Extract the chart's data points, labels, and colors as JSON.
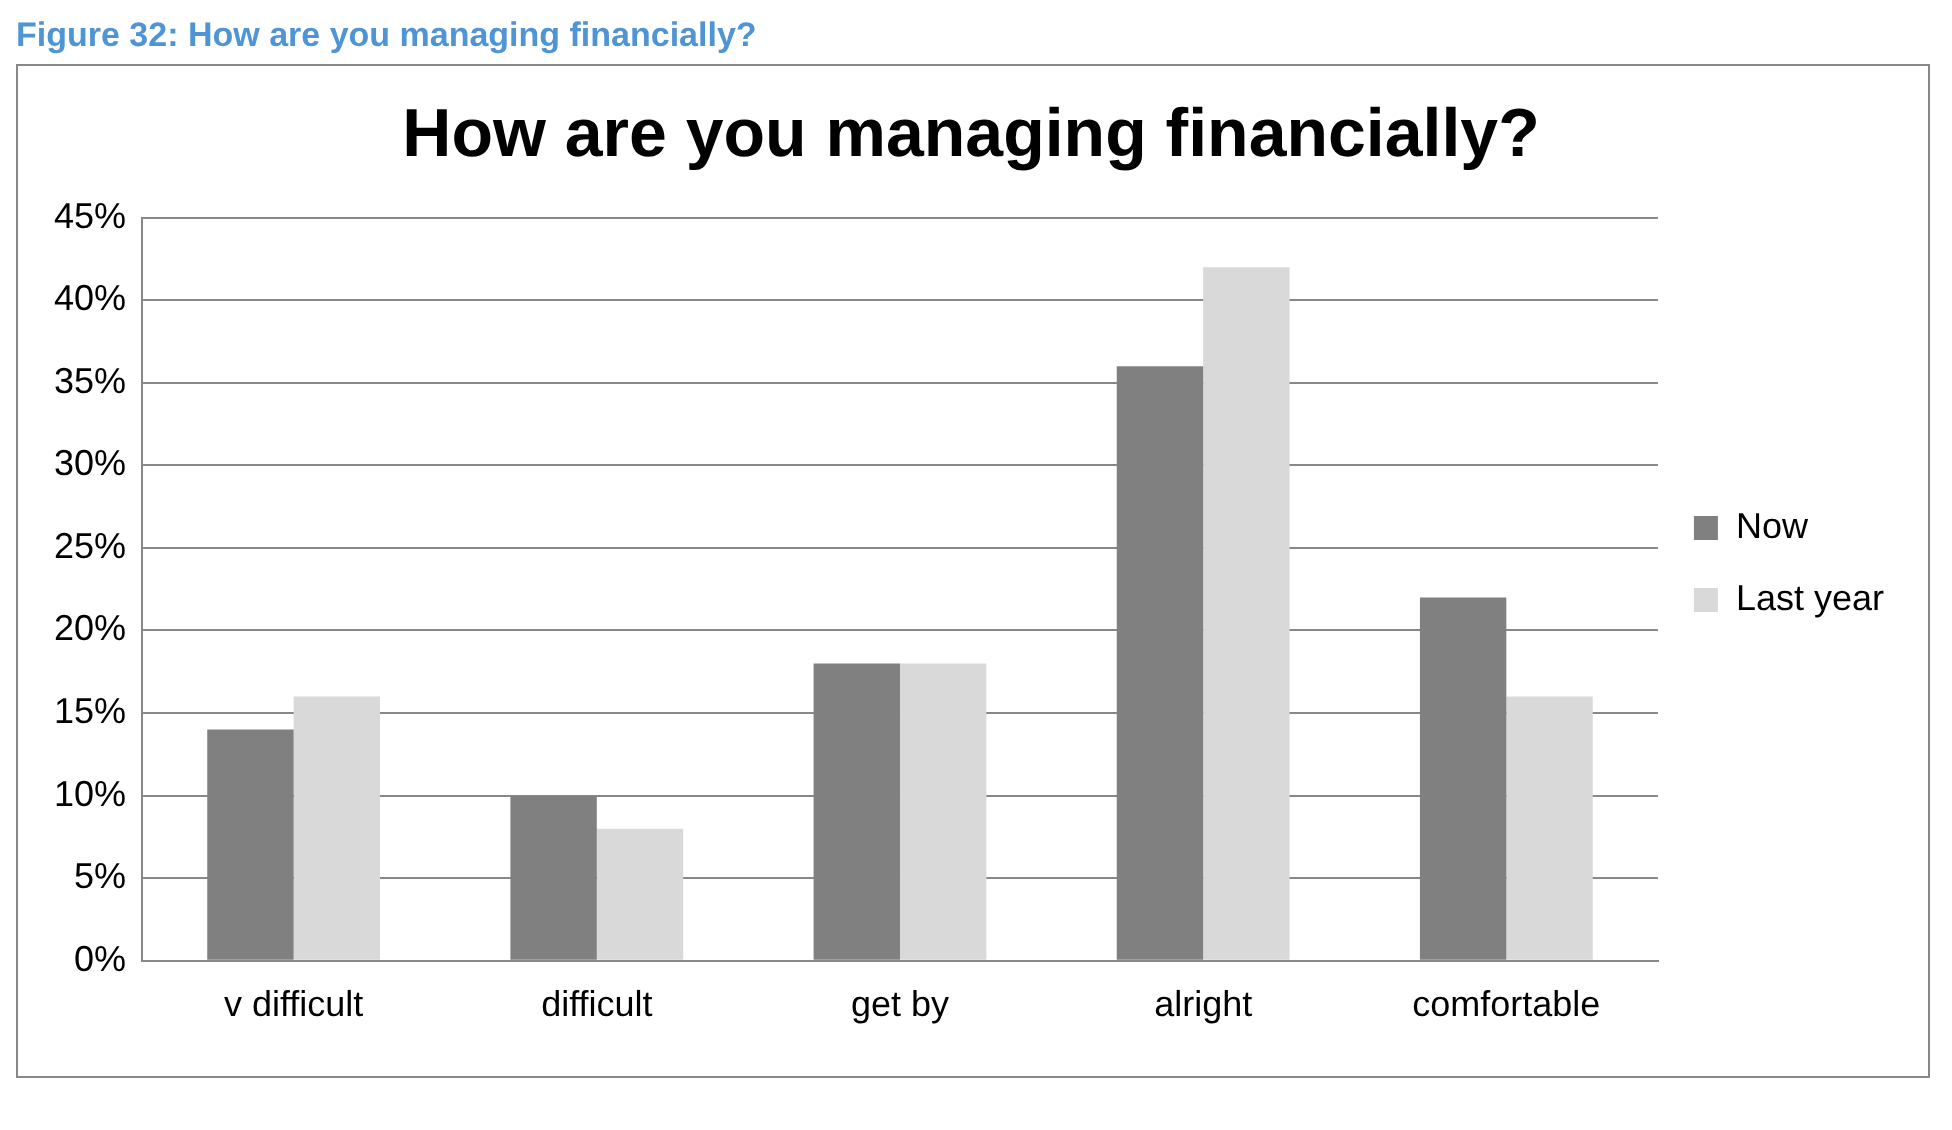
{
  "chart_data": {
    "type": "bar",
    "title": "How are you managing financially?",
    "annotations": [
      "Figure 32: How are you managing financially?"
    ],
    "categories": [
      "v difficult",
      "difficult",
      "get by",
      "alright",
      "comfortable"
    ],
    "series": [
      {
        "name": "Now",
        "color": "#808080",
        "values": [
          14,
          10,
          18,
          36,
          22
        ]
      },
      {
        "name": "Last year",
        "color": "#d9d9d9",
        "values": [
          16,
          8,
          18,
          42,
          16
        ]
      }
    ],
    "ylim": [
      0,
      45
    ],
    "yticks": [
      {
        "value": 0,
        "label": "0%"
      },
      {
        "value": 5,
        "label": "5%"
      },
      {
        "value": 10,
        "label": "10%"
      },
      {
        "value": 15,
        "label": "15%"
      },
      {
        "value": 20,
        "label": "20%"
      },
      {
        "value": 25,
        "label": "25%"
      },
      {
        "value": 30,
        "label": "30%"
      },
      {
        "value": 35,
        "label": "35%"
      },
      {
        "value": 40,
        "label": "40%"
      },
      {
        "value": 45,
        "label": "45%"
      }
    ],
    "grid": "y",
    "legend": "right"
  }
}
